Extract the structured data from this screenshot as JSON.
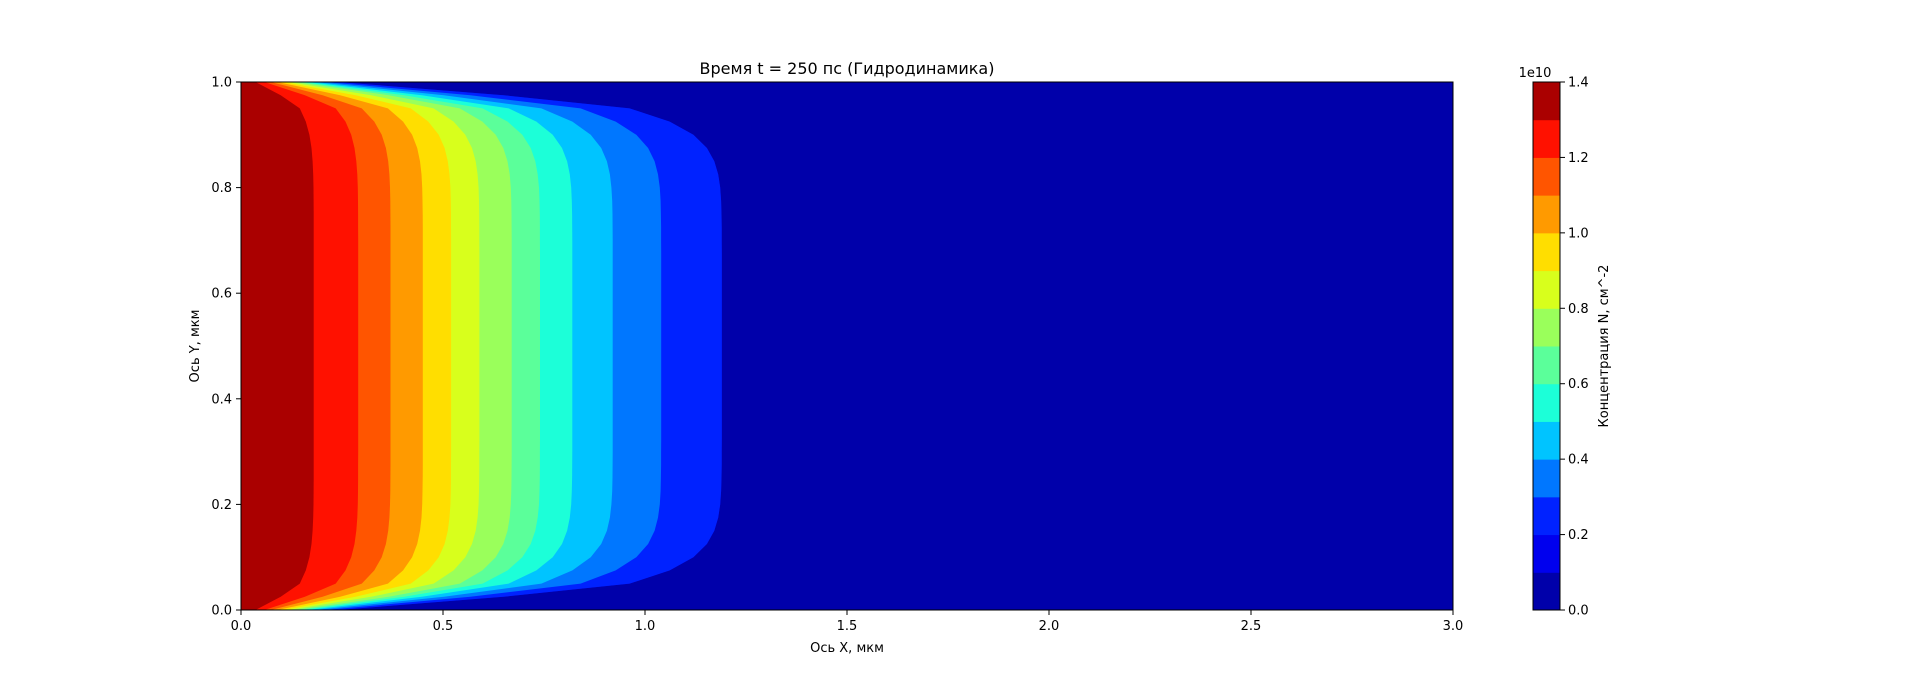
{
  "chart_data": {
    "type": "contourf",
    "title": "Время t = 250 пс (Гидродинамика)",
    "xlabel": "Ось X, мкм",
    "ylabel": "Ось Y, мкм",
    "xlim": [
      0.0,
      3.0
    ],
    "ylim": [
      0.0,
      1.0
    ],
    "x_ticks": [
      "0.0",
      "0.5",
      "1.0",
      "1.5",
      "2.0",
      "2.5",
      "3.0"
    ],
    "y_ticks": [
      "0.0",
      "0.2",
      "0.4",
      "0.6",
      "0.8",
      "1.0"
    ],
    "grid": false,
    "colorbar": {
      "label": "Концентрация N, см^-2",
      "offset_text": "1e10",
      "range": [
        0.0,
        1.4
      ],
      "ticks": [
        "0.0",
        "0.2",
        "0.4",
        "0.6",
        "0.8",
        "1.0",
        "1.2",
        "1.4"
      ],
      "levels": [
        0.0,
        0.1,
        0.2,
        0.3,
        0.4,
        0.5,
        0.6,
        0.7,
        0.8,
        0.9,
        1.0,
        1.1,
        1.2,
        1.3,
        1.4
      ],
      "colors": [
        "#0000aa",
        "#0000ee",
        "#0022ff",
        "#0077ff",
        "#00c4ff",
        "#1cffd8",
        "#5bff9a",
        "#9aff5b",
        "#d8ff1c",
        "#ffde00",
        "#ff9a00",
        "#ff5500",
        "#ff1100",
        "#aa0000"
      ],
      "placement": "right"
    },
    "field": {
      "description_values": "approximate contour boundaries along x (in μm) at mid-height for each level; boundaries curve toward x=0 near y=0 and y=1",
      "level_x_midheight": [
        {
          "level": 1.3,
          "x": 0.18
        },
        {
          "level": 1.2,
          "x": 0.29
        },
        {
          "level": 1.1,
          "x": 0.37
        },
        {
          "level": 1.0,
          "x": 0.45
        },
        {
          "level": 0.9,
          "x": 0.52
        },
        {
          "level": 0.8,
          "x": 0.59
        },
        {
          "level": 0.7,
          "x": 0.67
        },
        {
          "level": 0.6,
          "x": 0.74
        },
        {
          "level": 0.5,
          "x": 0.82
        },
        {
          "level": 0.4,
          "x": 0.92
        },
        {
          "level": 0.3,
          "x": 1.04
        },
        {
          "level": 0.2,
          "x": 1.19
        },
        {
          "level": 0.1,
          "x": 1.19
        }
      ]
    }
  }
}
